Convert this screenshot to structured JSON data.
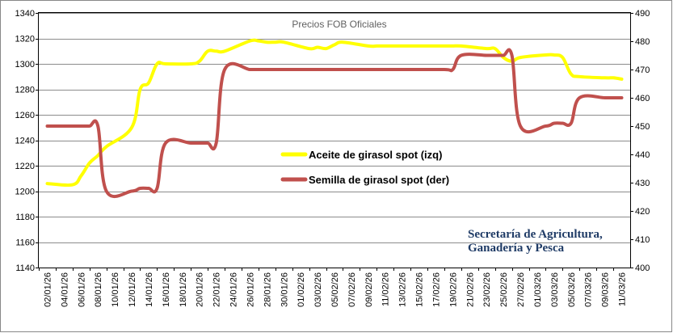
{
  "chart_data": {
    "type": "line",
    "title": "Precios FOB Oficiales",
    "watermark": [
      "Secretaría de Agricultura,",
      "Ganadería y Pesca"
    ],
    "grid": true,
    "legend_position": "center",
    "x": [
      "02/01/26",
      "05/01/26",
      "06/01/26",
      "07/01/26",
      "08/01/26",
      "09/01/26",
      "12/01/26",
      "13/01/26",
      "14/01/26",
      "15/01/26",
      "16/01/26",
      "19/01/26",
      "20/01/26",
      "21/01/26",
      "22/01/26",
      "23/01/26",
      "26/01/26",
      "27/01/26",
      "28/01/26",
      "29/01/26",
      "30/01/26",
      "02/02/26",
      "03/02/26",
      "04/02/26",
      "05/02/26",
      "06/02/26",
      "09/02/26",
      "10/02/26",
      "11/02/26",
      "12/02/26",
      "13/02/26",
      "18/02/26",
      "19/02/26",
      "20/02/26",
      "23/02/26",
      "24/02/26",
      "25/02/26",
      "26/02/26",
      "27/02/26",
      "02/03/26",
      "03/03/26",
      "04/03/26",
      "05/03/26",
      "06/03/26",
      "09/03/26",
      "10/03/26",
      "11/03/26"
    ],
    "x_tick_labels": [
      "02/01/26",
      "04/01/26",
      "06/01/26",
      "08/01/26",
      "10/01/26",
      "12/01/26",
      "14/01/26",
      "16/01/26",
      "18/01/26",
      "20/01/26",
      "22/01/26",
      "24/01/26",
      "26/01/26",
      "28/01/26",
      "30/01/26",
      "01/02/26",
      "03/02/26",
      "05/02/26",
      "07/02/26",
      "09/02/26",
      "11/02/26",
      "13/02/26",
      "15/02/26",
      "17/02/26",
      "19/02/26",
      "21/02/26",
      "23/02/26",
      "25/02/26",
      "27/02/26",
      "01/03/26",
      "03/03/26",
      "05/03/26",
      "07/03/26",
      "09/03/26",
      "11/03/26"
    ],
    "y_left": {
      "min": 1140,
      "max": 1340,
      "step": 20,
      "ticks": [
        "1140",
        "1160",
        "1180",
        "1200",
        "1220",
        "1240",
        "1260",
        "1280",
        "1300",
        "1320",
        "1340"
      ]
    },
    "y_right": {
      "min": 400,
      "max": 490,
      "step": 10,
      "ticks": [
        "400",
        "410",
        "420",
        "430",
        "440",
        "450",
        "460",
        "470",
        "480",
        "490"
      ]
    },
    "series": [
      {
        "name": "Aceite de girasol spot (izq)",
        "axis": "left",
        "color": "#ffff00",
        "values": [
          1206,
          1205,
          1212,
          1222,
          1228,
          1235,
          1250,
          1280,
          1285,
          1300,
          1300,
          1300,
          1302,
          1310,
          1310,
          1310,
          1318,
          1318,
          1317,
          1317,
          1317,
          1312,
          1313,
          1312,
          1315,
          1317,
          1314,
          1314,
          1314,
          1314,
          1314,
          1314,
          1314,
          1314,
          1312,
          1312,
          1305,
          1302,
          1305,
          1307,
          1307,
          1305,
          1292,
          1290,
          1289,
          1289,
          1288
        ]
      },
      {
        "name": "Semilla de girasol spot (der)",
        "axis": "right",
        "color": "#c0504d",
        "values": [
          450,
          450,
          450,
          450,
          450,
          427,
          427,
          428,
          428,
          428,
          444,
          444,
          444,
          444,
          444,
          470,
          470,
          470,
          470,
          470,
          470,
          470,
          470,
          470,
          470,
          470,
          470,
          470,
          470,
          470,
          470,
          470,
          470,
          475,
          475,
          475,
          475,
          475,
          450,
          450,
          451,
          451,
          451,
          460,
          460,
          460,
          460
        ]
      }
    ]
  }
}
